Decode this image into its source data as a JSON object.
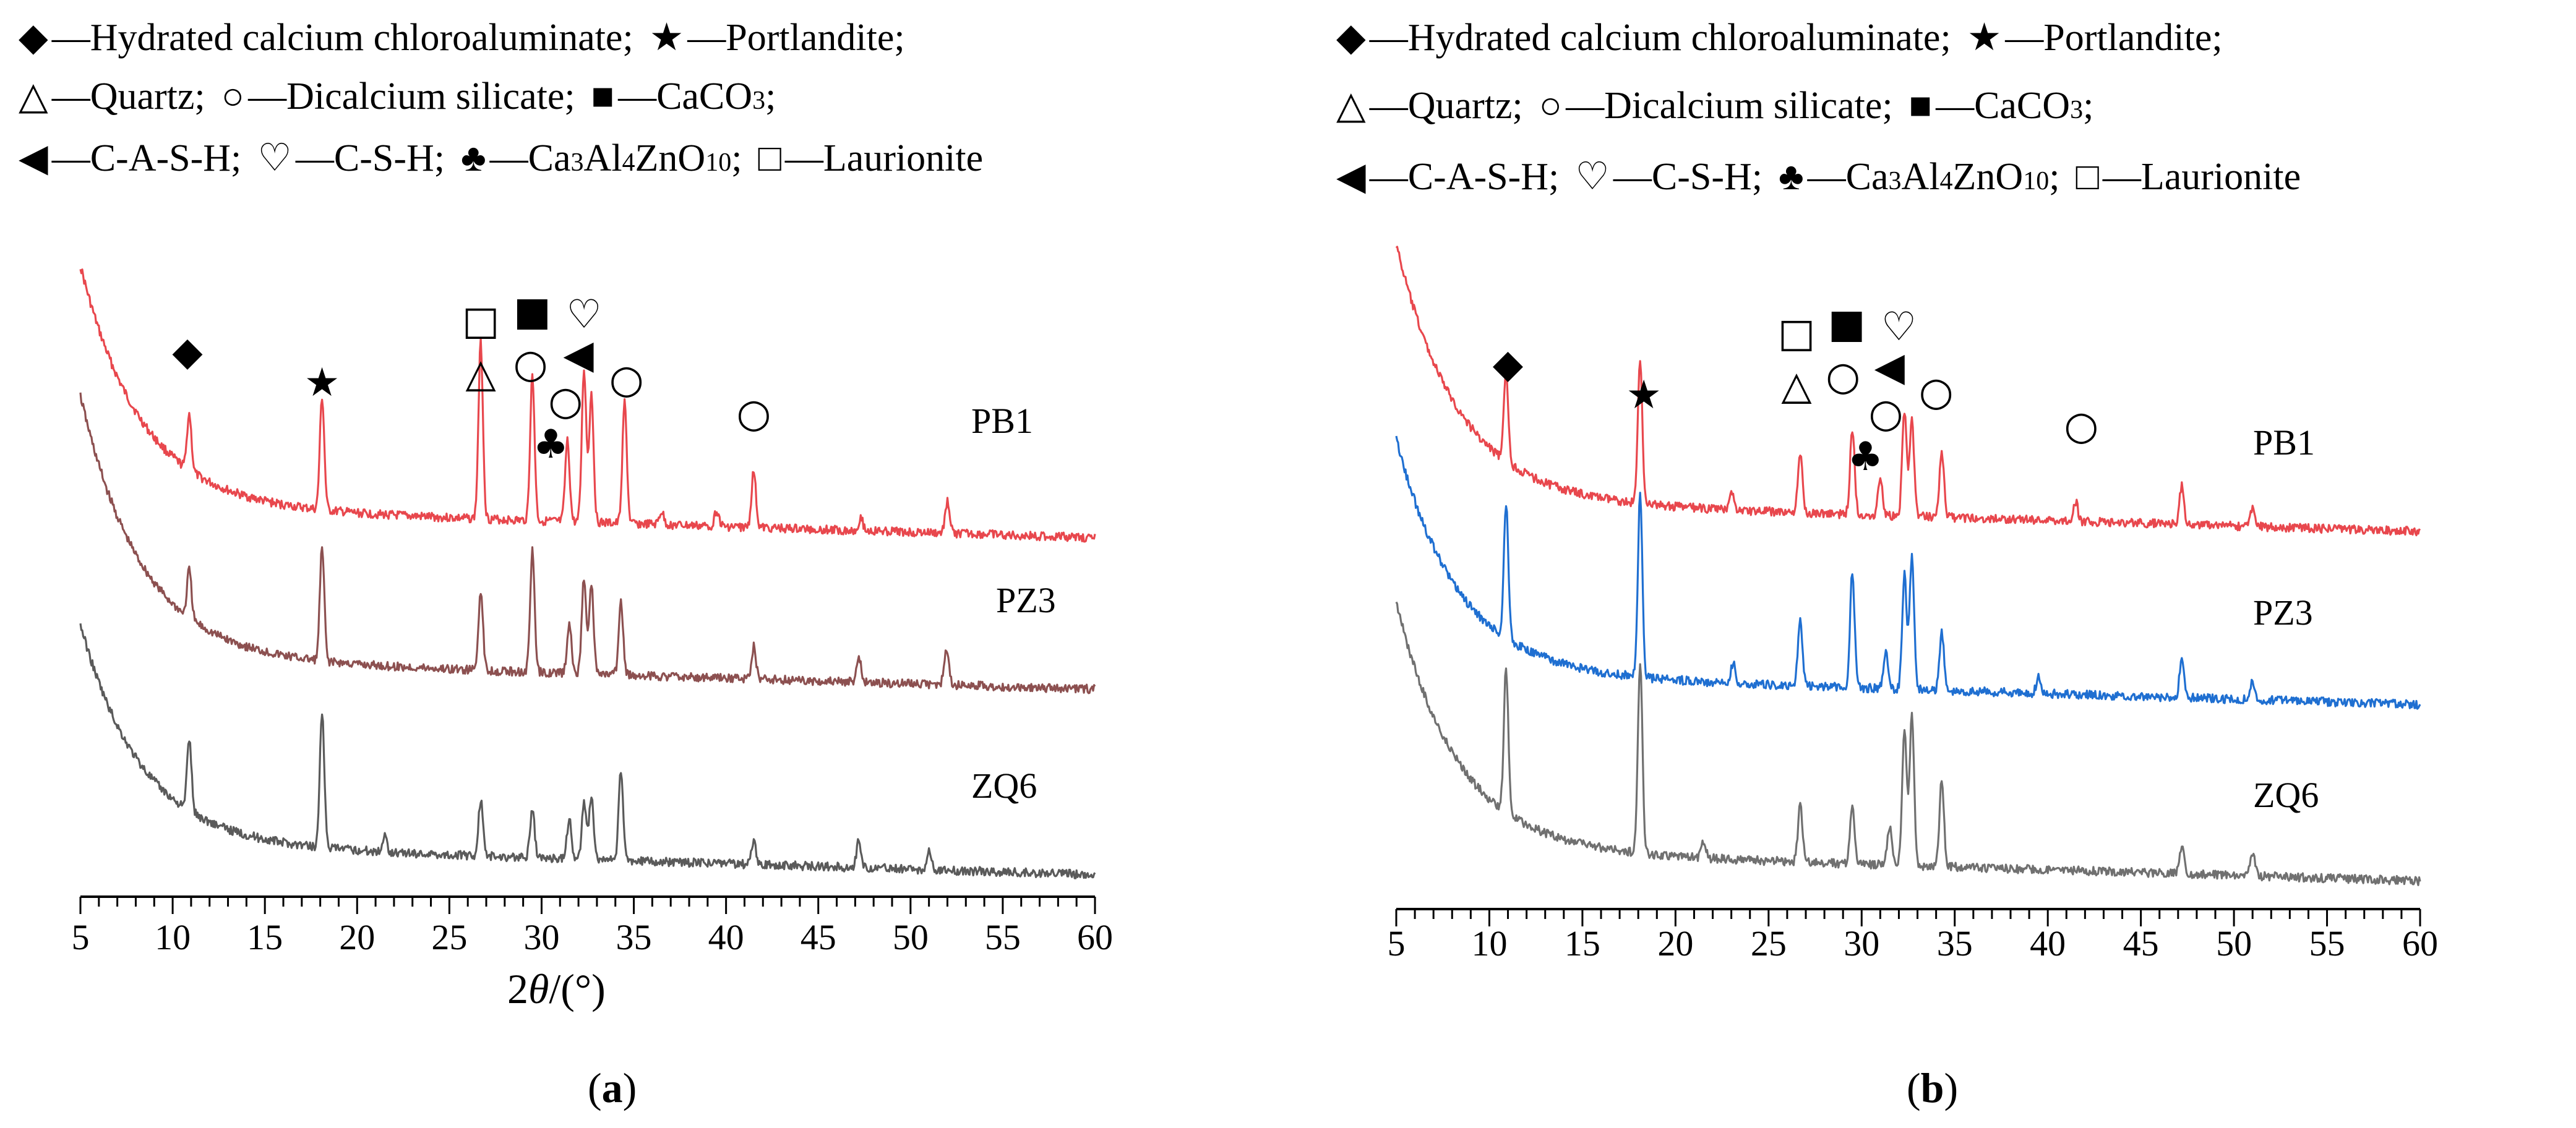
{
  "legend": {
    "line1": [
      {
        "symbol": "◆",
        "label": "—Hydrated calcium chloroaluminate;"
      },
      {
        "symbol": "★",
        "label": "—Portlandite;"
      }
    ],
    "line2": [
      {
        "symbol": "△",
        "label": "—Quartz;"
      },
      {
        "symbol": "○",
        "label": "—Dicalcium silicate;"
      },
      {
        "symbol": "■",
        "label": "—CaCO",
        "sub": "3",
        "after": ";"
      }
    ],
    "line3": [
      {
        "symbol": "◀",
        "label": "—C-A-S-H;"
      },
      {
        "symbol": "♡",
        "label": "—C-S-H;"
      },
      {
        "symbol": "♣",
        "label": "—Ca",
        "sub1": "3",
        "mid1": "Al",
        "sub2": "4",
        "mid2": "ZnO",
        "sub3": "10",
        "after": ";"
      },
      {
        "symbol": "□",
        "label": "—Laurionite"
      }
    ]
  },
  "panels": [
    {
      "caption_left": "(",
      "caption_bold": "a",
      "caption_right": ")",
      "xlabel_prefix": "2",
      "xlabel_theta": "θ",
      "xlabel_suffix": "/(°)",
      "colors": {
        "PB1": "#e8474d",
        "PZ3": "#8c5050",
        "ZQ6": "#5a5a5a"
      }
    },
    {
      "caption_left": "(",
      "caption_bold": "b",
      "caption_right": ")",
      "xlabel_prefix": "",
      "xlabel_theta": "",
      "xlabel_suffix": "",
      "colors": {
        "PB1": "#e8474d",
        "PZ3": "#1f6fd1",
        "ZQ6": "#707070"
      }
    }
  ],
  "chart_data": [
    {
      "type": "line",
      "title": "(a)",
      "xlabel": "2θ/(°)",
      "ylabel": "",
      "xlim": [
        5,
        60
      ],
      "xticks": [
        5,
        10,
        15,
        20,
        25,
        30,
        35,
        40,
        45,
        50,
        55,
        60
      ],
      "series": [
        {
          "name": "PB1",
          "peaks": [
            [
              10.9,
              0.35
            ],
            [
              18.1,
              0.7
            ],
            [
              26.7,
              1.1
            ],
            [
              29.5,
              0.9
            ],
            [
              31.4,
              0.5
            ],
            [
              32.3,
              0.95
            ],
            [
              32.7,
              0.8
            ],
            [
              34.5,
              0.75
            ],
            [
              41.5,
              0.35
            ],
            [
              52.0,
              0.2
            ],
            [
              47.3,
              0.08
            ],
            [
              36.5,
              0.08
            ],
            [
              39.5,
              0.1
            ]
          ]
        },
        {
          "name": "PZ3",
          "peaks": [
            [
              10.9,
              0.3
            ],
            [
              18.1,
              0.7
            ],
            [
              26.7,
              0.5
            ],
            [
              29.5,
              0.75
            ],
            [
              31.5,
              0.3
            ],
            [
              32.3,
              0.6
            ],
            [
              32.7,
              0.55
            ],
            [
              34.3,
              0.45
            ],
            [
              41.5,
              0.2
            ],
            [
              47.2,
              0.15
            ],
            [
              51.9,
              0.12
            ],
            [
              52.0,
              0.1
            ]
          ]
        },
        {
          "name": "ZQ6",
          "peaks": [
            [
              10.9,
              0.45
            ],
            [
              18.1,
              0.85
            ],
            [
              21.5,
              0.1
            ],
            [
              26.7,
              0.35
            ],
            [
              29.5,
              0.3
            ],
            [
              31.5,
              0.25
            ],
            [
              32.3,
              0.35
            ],
            [
              32.7,
              0.4
            ],
            [
              34.3,
              0.55
            ],
            [
              41.5,
              0.15
            ],
            [
              47.2,
              0.17
            ],
            [
              51.0,
              0.12
            ]
          ]
        }
      ],
      "phase_markers": [
        {
          "symbol": "◆",
          "x": 10.8,
          "name": "Hydrated calcium chloroaluminate"
        },
        {
          "symbol": "★",
          "x": 18.1,
          "name": "Portlandite"
        },
        {
          "symbol": "□",
          "x": 26.7,
          "name": "Laurionite"
        },
        {
          "symbol": "△",
          "x": 26.7,
          "name": "Quartz"
        },
        {
          "symbol": "■",
          "x": 29.5,
          "name": "CaCO3"
        },
        {
          "symbol": "○",
          "x": 29.4,
          "name": "Dicalcium silicate"
        },
        {
          "symbol": "♡",
          "x": 32.3,
          "name": "C-S-H"
        },
        {
          "symbol": "◀",
          "x": 32.0,
          "name": "C-A-S-H"
        },
        {
          "symbol": "○",
          "x": 31.3,
          "name": "Dicalcium silicate"
        },
        {
          "symbol": "♣",
          "x": 30.5,
          "name": "Ca3Al4ZnO10"
        },
        {
          "symbol": "○",
          "x": 34.6,
          "name": "Dicalcium silicate"
        },
        {
          "symbol": "○",
          "x": 41.5,
          "name": "Dicalcium silicate"
        }
      ]
    },
    {
      "type": "line",
      "title": "(b)",
      "xlabel": "",
      "ylabel": "",
      "xlim": [
        5,
        60
      ],
      "xticks": [
        5,
        10,
        15,
        20,
        25,
        30,
        35,
        40,
        45,
        50,
        55,
        60
      ],
      "series": [
        {
          "name": "PB1",
          "peaks": [
            [
              10.9,
              0.45
            ],
            [
              18.1,
              0.75
            ],
            [
              23.0,
              0.1
            ],
            [
              26.7,
              0.3
            ],
            [
              29.5,
              0.45
            ],
            [
              31.0,
              0.2
            ],
            [
              32.3,
              0.55
            ],
            [
              32.7,
              0.5
            ],
            [
              34.3,
              0.35
            ],
            [
              41.5,
              0.1
            ],
            [
              47.2,
              0.2
            ],
            [
              51.0,
              0.1
            ]
          ]
        },
        {
          "name": "PZ3",
          "peaks": [
            [
              10.9,
              0.7
            ],
            [
              18.1,
              0.95
            ],
            [
              23.1,
              0.1
            ],
            [
              26.7,
              0.35
            ],
            [
              29.5,
              0.6
            ],
            [
              31.3,
              0.2
            ],
            [
              32.3,
              0.6
            ],
            [
              32.7,
              0.7
            ],
            [
              34.3,
              0.3
            ],
            [
              39.5,
              0.08
            ],
            [
              47.2,
              0.2
            ],
            [
              51.0,
              0.1
            ]
          ]
        },
        {
          "name": "ZQ6",
          "peaks": [
            [
              10.9,
              0.75
            ],
            [
              18.1,
              1.0
            ],
            [
              21.5,
              0.08
            ],
            [
              26.7,
              0.3
            ],
            [
              29.5,
              0.3
            ],
            [
              31.5,
              0.2
            ],
            [
              32.3,
              0.7
            ],
            [
              32.7,
              0.8
            ],
            [
              34.3,
              0.45
            ],
            [
              47.2,
              0.15
            ],
            [
              51.0,
              0.12
            ]
          ]
        }
      ],
      "phase_markers": [
        {
          "symbol": "◆",
          "x": 11.0,
          "name": "Hydrated calcium chloroaluminate"
        },
        {
          "symbol": "★",
          "x": 18.3,
          "name": "Portlandite"
        },
        {
          "symbol": "□",
          "x": 26.5,
          "name": "Laurionite"
        },
        {
          "symbol": "△",
          "x": 26.5,
          "name": "Quartz"
        },
        {
          "symbol": "■",
          "x": 29.2,
          "name": "CaCO3"
        },
        {
          "symbol": "○",
          "x": 29.0,
          "name": "Dicalcium silicate"
        },
        {
          "symbol": "♡",
          "x": 32.0,
          "name": "C-S-H"
        },
        {
          "symbol": "◀",
          "x": 31.5,
          "name": "C-A-S-H"
        },
        {
          "symbol": "○",
          "x": 31.3,
          "name": "Dicalcium silicate"
        },
        {
          "symbol": "♣",
          "x": 30.2,
          "name": "Ca3Al4ZnO10"
        },
        {
          "symbol": "○",
          "x": 34.0,
          "name": "Dicalcium silicate"
        },
        {
          "symbol": "○",
          "x": 41.8,
          "name": "Dicalcium silicate"
        }
      ]
    }
  ]
}
